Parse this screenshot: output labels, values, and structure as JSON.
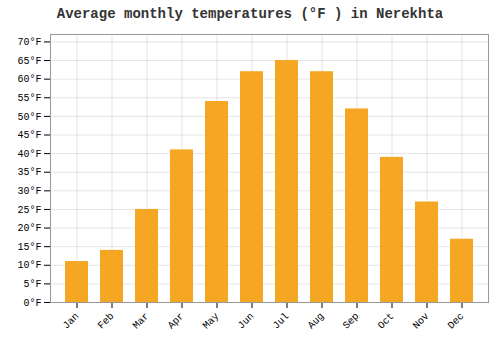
{
  "chart_data": {
    "type": "bar",
    "title": "Average monthly temperatures (°F ) in Nerekhta",
    "categories": [
      "Jan",
      "Feb",
      "Mar",
      "Apr",
      "May",
      "Jun",
      "Jul",
      "Aug",
      "Sep",
      "Oct",
      "Nov",
      "Dec"
    ],
    "values": [
      11,
      14,
      25,
      41,
      54,
      62,
      65,
      62,
      52,
      39,
      27,
      17
    ],
    "color": "#F5A623",
    "ylim": [
      0,
      72
    ],
    "yticks": [
      {
        "value": 0,
        "label": "0°F"
      },
      {
        "value": 5,
        "label": "5°F"
      },
      {
        "value": 10,
        "label": "10°F"
      },
      {
        "value": 15,
        "label": "15°F"
      },
      {
        "value": 20,
        "label": "20°F"
      },
      {
        "value": 25,
        "label": "25°F"
      },
      {
        "value": 30,
        "label": "30°F"
      },
      {
        "value": 35,
        "label": "35°F"
      },
      {
        "value": 40,
        "label": "40°F"
      },
      {
        "value": 45,
        "label": "45°F"
      },
      {
        "value": 50,
        "label": "50°F"
      },
      {
        "value": 55,
        "label": "55°F"
      },
      {
        "value": 60,
        "label": "60°F"
      },
      {
        "value": 65,
        "label": "65°F"
      },
      {
        "value": 70,
        "label": "70°F"
      }
    ],
    "grid": true
  }
}
